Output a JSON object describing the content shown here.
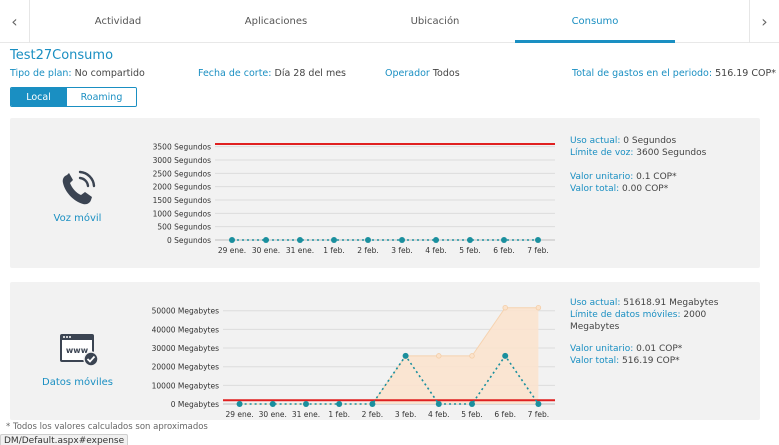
{
  "tabs": [
    {
      "label": "Actividad"
    },
    {
      "label": "Aplicaciones"
    },
    {
      "label": "Ubicación"
    },
    {
      "label": "Consumo"
    }
  ],
  "active_tab": "Consumo",
  "title": "Test27Consumo",
  "meta": {
    "plan_label": "Tipo de plan:",
    "plan_value": "No compartido",
    "cutoff_label": "Fecha de corte:",
    "cutoff_value": "Día 28 del mes",
    "operator_label": "Operador",
    "operator_value": "Todos",
    "total_label": "Total de gastos en el periodo:",
    "total_value": "516.19 COP*"
  },
  "toggle": {
    "local": "Local",
    "roaming": "Roaming",
    "selected": "Local"
  },
  "voice": {
    "label": "Voz móvil",
    "icon": "phone-icon",
    "uso_label": "Uso actual:",
    "uso_value": "0 Segundos",
    "limite_label": "Límite de voz:",
    "limite_value": "3600 Segundos",
    "unit_label": "Valor unitario:",
    "unit_value": "0.1 COP*",
    "total_label": "Valor total:",
    "total_value": "0.00 COP*"
  },
  "data": {
    "label": "Datos móviles",
    "icon": "www-check-icon",
    "uso_label": "Uso actual:",
    "uso_value": "51618.91 Megabytes",
    "limite_label": "Límite de datos móviles:",
    "limite_value": "2000 Megabytes",
    "unit_label": "Valor unitario:",
    "unit_value": "0.01 COP*",
    "total_label": "Valor total:",
    "total_value": "516.19 COP*"
  },
  "chart_data": [
    {
      "type": "line",
      "categories": [
        "29 ene.",
        "30 ene.",
        "31 ene.",
        "1 feb.",
        "2 feb.",
        "3 feb.",
        "4 feb.",
        "5 feb.",
        "6 feb.",
        "7 feb."
      ],
      "yticks": [
        "0 Segundos",
        "500 Segundos",
        "1000 Segundos",
        "1500 Segundos",
        "2000 Segundos",
        "2500 Segundos",
        "3000 Segundos",
        "3500 Segundos"
      ],
      "ylim": [
        0,
        3600
      ],
      "limit": 3600,
      "limit_color": "#e02020",
      "series": [
        {
          "values": [
            0,
            0,
            0,
            0,
            0,
            0,
            0,
            0,
            0,
            0
          ]
        }
      ],
      "cumulative": [
        0,
        0,
        0,
        0,
        0,
        0,
        0,
        0,
        0,
        0
      ],
      "point_color": "#1a8f9e"
    },
    {
      "type": "line",
      "categories": [
        "29 ene.",
        "30 ene.",
        "31 ene.",
        "1 feb.",
        "2 feb.",
        "3 feb.",
        "4 feb.",
        "5 feb.",
        "6 feb.",
        "7 feb."
      ],
      "yticks": [
        "0 Megabytes",
        "10000 Megabytes",
        "20000 Megabytes",
        "30000 Megabytes",
        "40000 Megabytes",
        "50000 Megabytes"
      ],
      "ylim": [
        0,
        52000
      ],
      "limit": 2000,
      "limit_color": "#e02020",
      "series": [
        {
          "values": [
            0,
            0,
            0,
            0,
            0,
            25809,
            0,
            0,
            25809,
            0
          ]
        }
      ],
      "cumulative": [
        0,
        0,
        0,
        0,
        0,
        25809,
        25809,
        25809,
        51619,
        51619
      ],
      "point_color": "#1a8f9e",
      "area_color": "#fbe3cc"
    }
  ],
  "footnote": "* Todos los valores calculados son aproximados",
  "statusbar": "DM/Default.aspx#expense"
}
